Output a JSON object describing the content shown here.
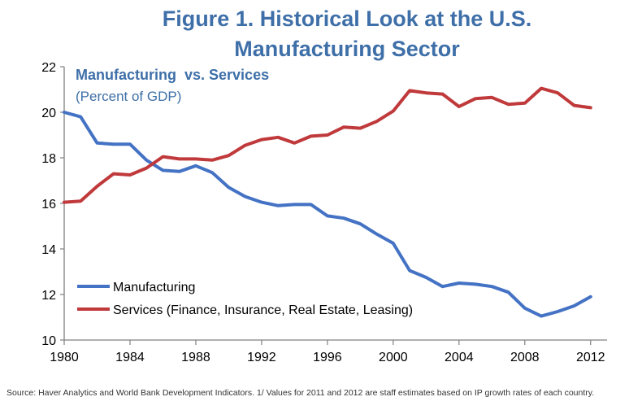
{
  "title": {
    "line1": "Figure 1. Historical Look at the U.S.",
    "line2": "Manufacturing Sector"
  },
  "source": "Source: Haver Analytics and World Bank Development Indicators. 1/ Values for 2011 and 2012 are staff estimates based on IP growth rates of each country.",
  "chart_data": {
    "type": "line",
    "title": "Manufacturing  vs. Services",
    "subtitle": "(Percent of GDP)",
    "xlabel": "",
    "ylabel": "",
    "xlim": [
      1980,
      2013
    ],
    "ylim": [
      10,
      22
    ],
    "x_ticks": [
      1980,
      1984,
      1988,
      1992,
      1996,
      2000,
      2004,
      2008,
      2012
    ],
    "y_ticks": [
      10,
      12,
      14,
      16,
      18,
      20,
      22
    ],
    "grid": false,
    "legend_position": "bottom-left",
    "x": [
      1980,
      1981,
      1982,
      1983,
      1984,
      1985,
      1986,
      1987,
      1988,
      1989,
      1990,
      1991,
      1992,
      1993,
      1994,
      1995,
      1996,
      1997,
      1998,
      1999,
      2000,
      2001,
      2002,
      2003,
      2004,
      2005,
      2006,
      2007,
      2008,
      2009,
      2010,
      2011,
      2012
    ],
    "series": [
      {
        "name": "Manufacturing",
        "color": "#4472c4",
        "values": [
          20.0,
          19.8,
          18.65,
          18.6,
          18.6,
          17.9,
          17.45,
          17.4,
          17.65,
          17.35,
          16.7,
          16.3,
          16.05,
          15.9,
          15.95,
          15.95,
          15.45,
          15.35,
          15.1,
          14.65,
          14.25,
          13.05,
          12.75,
          12.35,
          12.5,
          12.45,
          12.35,
          12.1,
          11.4,
          11.05,
          11.25,
          11.5,
          11.9
        ]
      },
      {
        "name": "Services (Finance, Insurance, Real Estate, Leasing)",
        "color": "#c0393b",
        "values": [
          16.05,
          16.1,
          16.75,
          17.3,
          17.25,
          17.55,
          18.05,
          17.95,
          17.95,
          17.9,
          18.1,
          18.55,
          18.8,
          18.9,
          18.65,
          18.95,
          19.0,
          19.35,
          19.3,
          19.6,
          20.05,
          20.95,
          20.85,
          20.8,
          20.25,
          20.6,
          20.65,
          20.35,
          20.4,
          21.05,
          20.85,
          20.3,
          20.2
        ]
      }
    ]
  }
}
